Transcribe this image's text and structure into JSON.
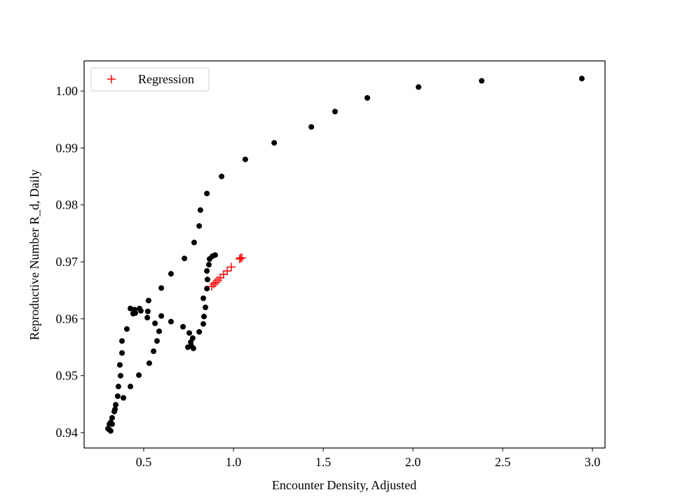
{
  "chart_data": {
    "type": "scatter",
    "xlabel": "Encounter Density, Adjusted",
    "ylabel": "Reproductive Number R_d, Daily",
    "xlim": [
      0.168,
      3.07
    ],
    "ylim": [
      0.9373,
      1.0053
    ],
    "xticks": [
      0.5,
      {
        "value": 1,
        "label": "1.0"
      },
      1.5,
      {
        "value": 2,
        "label": "2.0"
      },
      2.5,
      {
        "value": 3,
        "label": "3.0"
      }
    ],
    "yticks": [
      0.94,
      0.95,
      0.96,
      0.97,
      0.98,
      0.99,
      {
        "value": 1,
        "label": "1.00"
      }
    ],
    "legend": "upper left",
    "series": [
      {
        "color": "#000000",
        "marker": "dot",
        "x": [
          2.941,
          2.383,
          2.031,
          1.746,
          1.566,
          1.434,
          1.227,
          1.066,
          0.934,
          0.852,
          0.816,
          0.809,
          0.781,
          0.727,
          0.652,
          0.598,
          0.527,
          0.523,
          0.52,
          0.426,
          0.449,
          0.477,
          0.453,
          0.484,
          0.441,
          0.406,
          0.379,
          0.379,
          0.367,
          0.371,
          0.359,
          0.355,
          0.344,
          0.34,
          0.336,
          0.324,
          0.316,
          0.309,
          0.324,
          0.309,
          0.316,
          0.301,
          0.387,
          0.426,
          0.473,
          0.531,
          0.555,
          0.574,
          0.586,
          0.563,
          0.598,
          0.652,
          0.719,
          0.754,
          0.773,
          0.762,
          0.746,
          0.766,
          0.777,
          0.809,
          0.832,
          0.836,
          0.844,
          0.832,
          0.852,
          0.855,
          0.852,
          0.863,
          0.867,
          0.883,
          0.898
        ],
        "values": [
          1.0022,
          1.0018,
          1.0007,
          0.9988,
          0.9964,
          0.9937,
          0.9909,
          0.988,
          0.985,
          0.982,
          0.9791,
          0.9763,
          0.9734,
          0.9706,
          0.9679,
          0.9654,
          0.9632,
          0.9613,
          0.9602,
          0.9618,
          0.9616,
          0.9618,
          0.961,
          0.9614,
          0.9609,
          0.9582,
          0.9561,
          0.954,
          0.9519,
          0.95,
          0.9481,
          0.9464,
          0.9449,
          0.9441,
          0.9437,
          0.9426,
          0.9418,
          0.9415,
          0.9415,
          0.9405,
          0.9403,
          0.9407,
          0.9461,
          0.9481,
          0.9501,
          0.9522,
          0.9543,
          0.9561,
          0.9578,
          0.9592,
          0.9605,
          0.9595,
          0.9586,
          0.9575,
          0.9566,
          0.9559,
          0.955,
          0.9552,
          0.9548,
          0.9577,
          0.9591,
          0.9604,
          0.962,
          0.9636,
          0.9653,
          0.9669,
          0.9684,
          0.9695,
          0.9705,
          0.971,
          0.9712
        ]
      },
      {
        "name": "Regression",
        "color": "#ff0000",
        "marker": "plus",
        "x": [
          0.879,
          0.891,
          0.902,
          0.914,
          0.926,
          0.945,
          0.965,
          0.988,
          1.035,
          1.047,
          1.039
        ],
        "values": [
          0.9657,
          0.9661,
          0.9664,
          0.9668,
          0.9672,
          0.9678,
          0.9684,
          0.9691,
          0.9705,
          0.9707,
          0.9707
        ]
      }
    ]
  }
}
